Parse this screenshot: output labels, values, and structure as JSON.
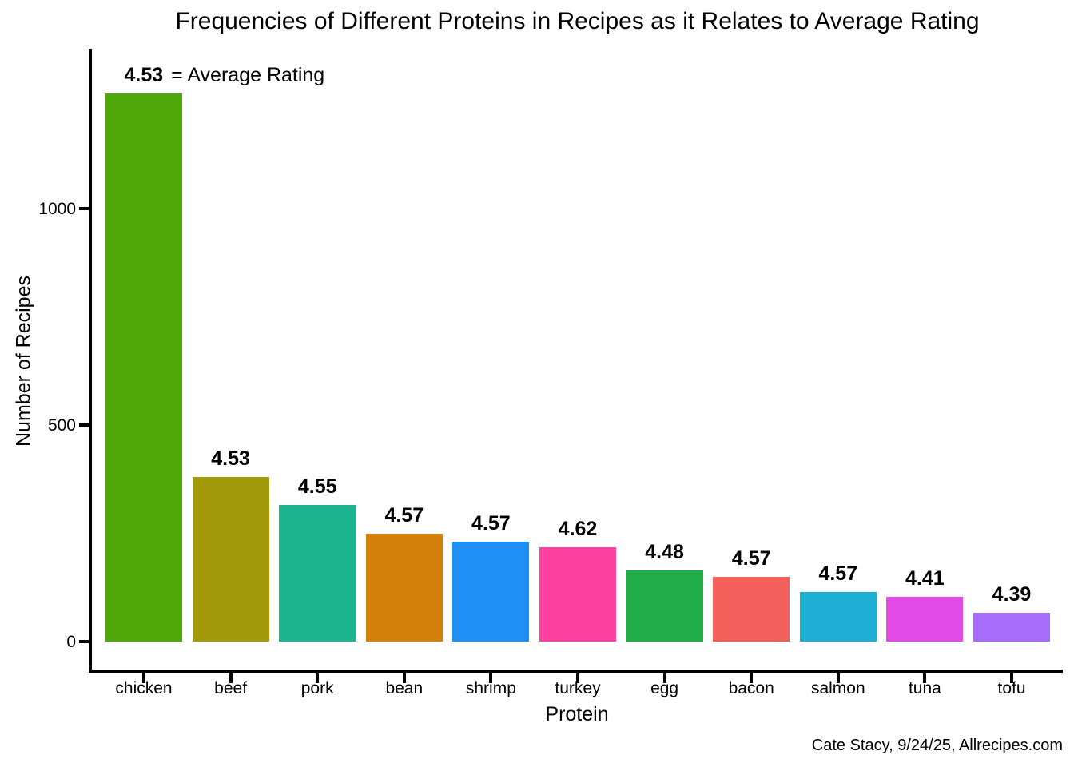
{
  "chart_data": {
    "type": "bar",
    "title": "Frequencies of Different Proteins in Recipes as it Relates to Average Rating",
    "xlabel": "Protein",
    "ylabel": "Number of Recipes",
    "categories": [
      "chicken",
      "beef",
      "pork",
      "bean",
      "shrimp",
      "turkey",
      "egg",
      "bacon",
      "salmon",
      "tuna",
      "tofu"
    ],
    "values": [
      1265,
      380,
      315,
      250,
      230,
      218,
      165,
      150,
      115,
      103,
      66
    ],
    "bar_labels": [
      "4.53",
      "4.53",
      "4.55",
      "4.57",
      "4.57",
      "4.62",
      "4.48",
      "4.57",
      "4.57",
      "4.41",
      "4.39"
    ],
    "bar_colors": [
      "#4FA80A",
      "#A29A08",
      "#1CB38F",
      "#D3810B",
      "#1E8FF5",
      "#FB42A1",
      "#21AD47",
      "#F2605C",
      "#1EAFD4",
      "#E24AE5",
      "#A76CFB"
    ],
    "yticks": [
      0,
      500,
      1000
    ],
    "ylim": [
      -65,
      1370
    ],
    "grid": false,
    "legend": false,
    "annotation": {
      "bold_value": "4.53",
      "suffix": "= Average Rating"
    }
  },
  "footer": {
    "credit": "Cate Stacy, 9/24/25, Allrecipes.com"
  },
  "colors": {
    "axis": "#000000",
    "text": "#000000",
    "background": "#ffffff"
  }
}
